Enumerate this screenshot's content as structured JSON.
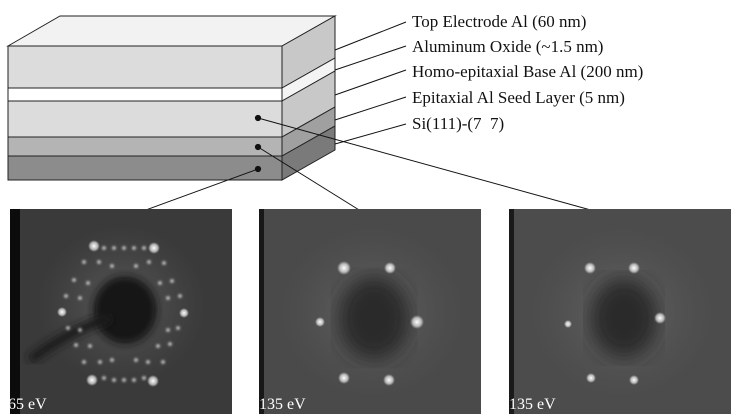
{
  "layers": [
    {
      "id": "top-electrode",
      "label": "Top Electrode Al (60 nm)",
      "color": "#dcdcdc"
    },
    {
      "id": "aluminum-oxide",
      "label": "Aluminum Oxide (~1.5 nm)",
      "color": "#ffffff"
    },
    {
      "id": "homo-epitaxial-base",
      "label": "Homo-epitaxial Base Al (200 nm)",
      "color": "#dcdcdc"
    },
    {
      "id": "epitaxial-seed",
      "label": "Epitaxial Al Seed Layer (5 nm)",
      "color": "#b4b4b4"
    },
    {
      "id": "substrate",
      "label": "Si(111)-(7  7)",
      "color": "#8c8c8c"
    }
  ],
  "diffraction_panels": [
    {
      "id": "substrate-pattern",
      "energy": "65 eV"
    },
    {
      "id": "seed-layer-pattern",
      "energy": "135 eV"
    },
    {
      "id": "base-layer-pattern",
      "energy": "135 eV"
    }
  ]
}
